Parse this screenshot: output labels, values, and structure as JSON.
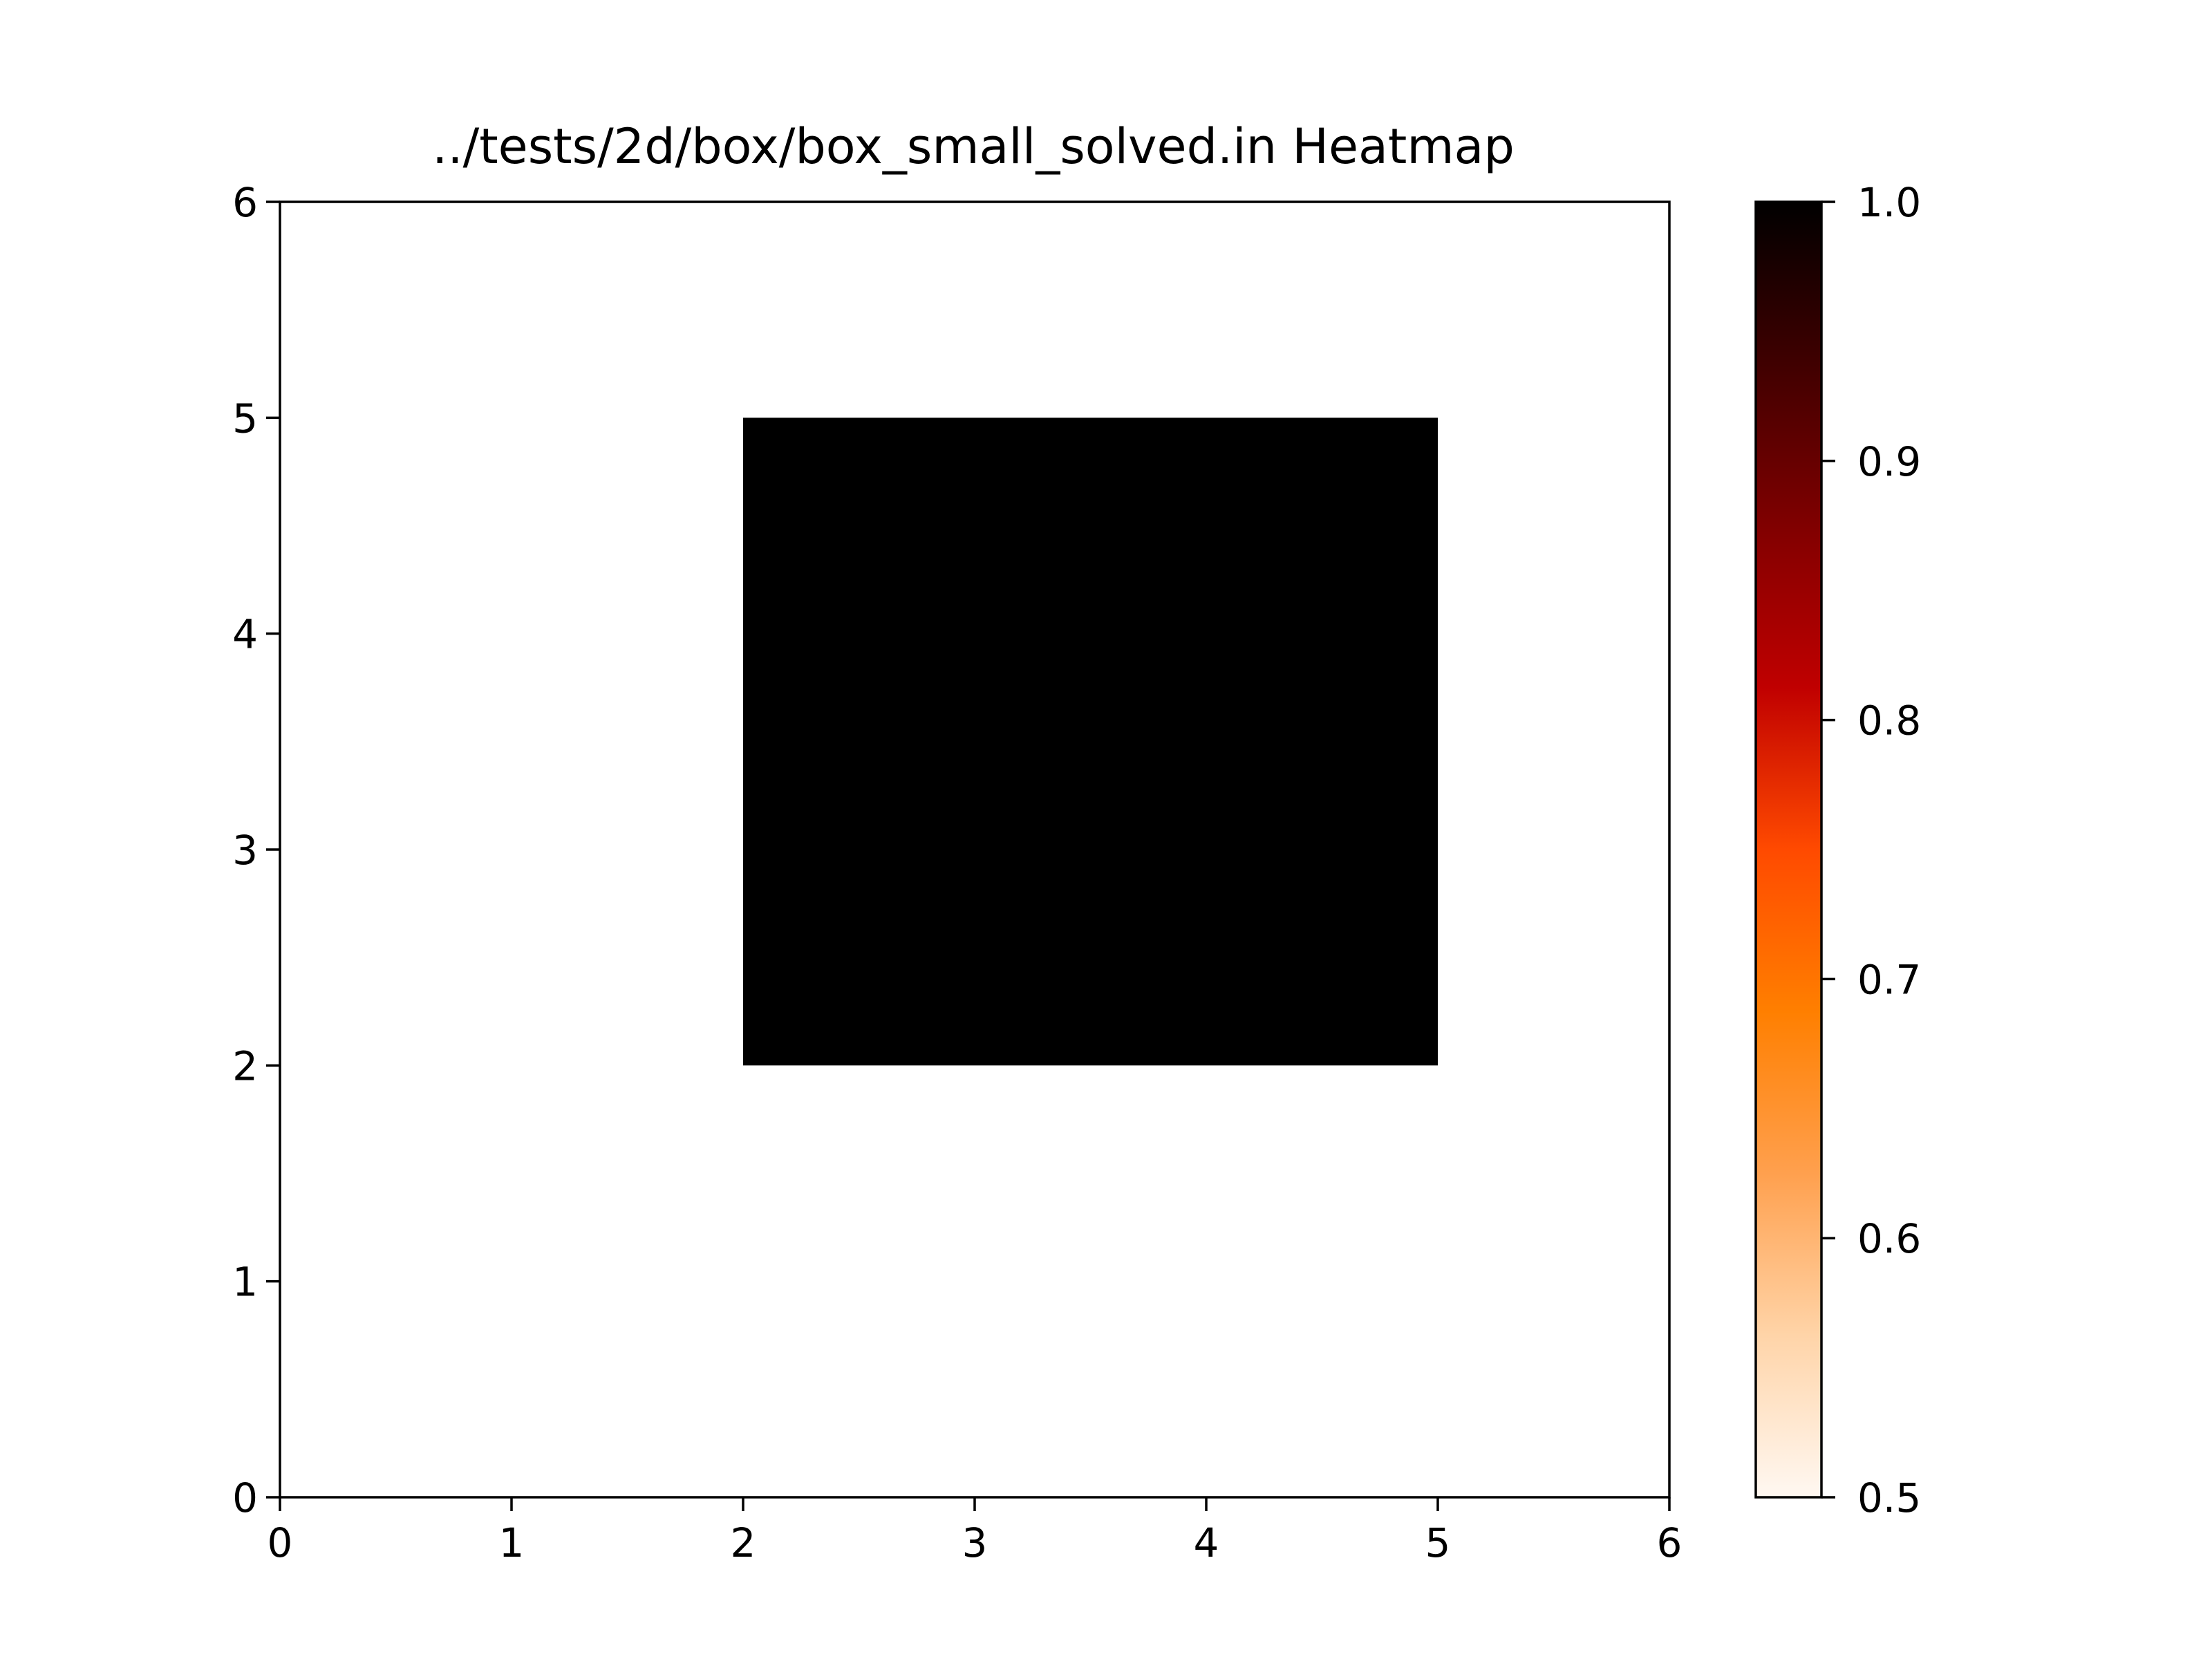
{
  "chart_data": {
    "type": "heatmap",
    "title": "../tests/2d/box/box_small_solved.in Heatmap",
    "xlabel": "",
    "ylabel": "",
    "xlim": [
      0,
      6
    ],
    "ylim": [
      0,
      6
    ],
    "x_ticks": [
      "0",
      "1",
      "2",
      "3",
      "4",
      "5",
      "6"
    ],
    "y_ticks": [
      "0",
      "1",
      "2",
      "3",
      "4",
      "5",
      "6"
    ],
    "grid": false,
    "background_value": 0,
    "cells": [
      {
        "x0": 2,
        "x1": 5,
        "y0": 2,
        "y1": 5,
        "value": 1.0
      }
    ],
    "colorbar": {
      "colormap": "gist_heat_r",
      "range": [
        0.5,
        1.0
      ],
      "ticks": [
        "0.5",
        "0.6",
        "0.7",
        "0.8",
        "0.9",
        "1.0"
      ],
      "stops": [
        "#fff8f2",
        "#ffd4a8",
        "#ffa04e",
        "#ff7f00",
        "#ff4a00",
        "#c00000",
        "#800000",
        "#400000",
        "#000000"
      ]
    },
    "colors": {
      "axes": "#000000",
      "background": "#ffffff",
      "max_value": "#000000"
    }
  }
}
